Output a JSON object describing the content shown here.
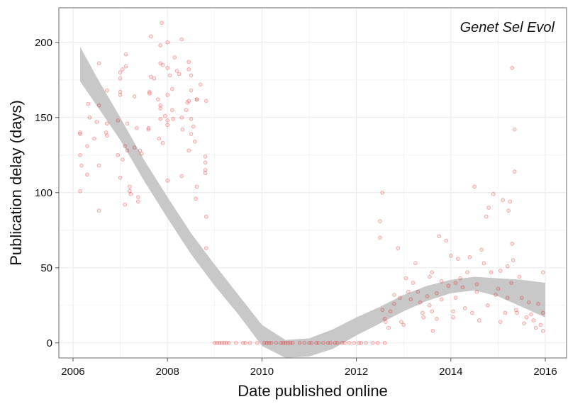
{
  "chart_data": {
    "type": "scatter",
    "title": "",
    "annotation": "Genet Sel Evol",
    "xlabel": "Date published online",
    "ylabel": "Publication delay (days)",
    "xlim": [
      2005.7,
      2016.45
    ],
    "ylim": [
      -10,
      223
    ],
    "x_ticks": [
      2006,
      2008,
      2010,
      2012,
      2014,
      2016
    ],
    "y_ticks": [
      0,
      50,
      100,
      150,
      200
    ],
    "grid": true,
    "colors": {
      "points": "#e31a1c",
      "band": "#c8c8c8",
      "frame": "#8c8c8c",
      "grid": "#ececec"
    },
    "points": [
      [
        2006.15,
        101
      ],
      [
        2006.15,
        125
      ],
      [
        2006.15,
        139
      ],
      [
        2006.15,
        140
      ],
      [
        2006.18,
        118
      ],
      [
        2006.3,
        131
      ],
      [
        2006.32,
        159
      ],
      [
        2006.3,
        112
      ],
      [
        2006.35,
        150
      ],
      [
        2006.45,
        136
      ],
      [
        2006.5,
        147
      ],
      [
        2006.55,
        88
      ],
      [
        2006.55,
        186
      ],
      [
        2006.55,
        158
      ],
      [
        2006.55,
        118
      ],
      [
        2006.7,
        140
      ],
      [
        2006.72,
        168
      ],
      [
        2006.72,
        138
      ],
      [
        2006.72,
        146
      ],
      [
        2006.95,
        148
      ],
      [
        2006.95,
        125
      ],
      [
        2007.0,
        165
      ],
      [
        2007.0,
        180
      ],
      [
        2007.0,
        176
      ],
      [
        2007.0,
        167
      ],
      [
        2007.0,
        110
      ],
      [
        2007.05,
        182
      ],
      [
        2007.05,
        122
      ],
      [
        2007.1,
        92
      ],
      [
        2007.1,
        131
      ],
      [
        2007.12,
        192
      ],
      [
        2007.12,
        184
      ],
      [
        2007.15,
        146
      ],
      [
        2007.15,
        128
      ],
      [
        2007.2,
        104
      ],
      [
        2007.2,
        101
      ],
      [
        2007.22,
        99
      ],
      [
        2007.3,
        164
      ],
      [
        2007.3,
        130
      ],
      [
        2007.35,
        143
      ],
      [
        2007.38,
        94
      ],
      [
        2007.38,
        97
      ],
      [
        2007.42,
        128
      ],
      [
        2007.45,
        126
      ],
      [
        2007.6,
        142
      ],
      [
        2007.6,
        143
      ],
      [
        2007.62,
        166
      ],
      [
        2007.62,
        167
      ],
      [
        2007.65,
        177
      ],
      [
        2007.65,
        204
      ],
      [
        2007.72,
        176
      ],
      [
        2007.8,
        162
      ],
      [
        2007.82,
        136
      ],
      [
        2007.85,
        186
      ],
      [
        2007.85,
        198
      ],
      [
        2007.85,
        156
      ],
      [
        2007.85,
        158
      ],
      [
        2007.85,
        149
      ],
      [
        2007.88,
        213
      ],
      [
        2007.9,
        133
      ],
      [
        2007.9,
        185
      ],
      [
        2007.95,
        151
      ],
      [
        2008.0,
        200
      ],
      [
        2008.0,
        183
      ],
      [
        2008.0,
        165
      ],
      [
        2008.0,
        148
      ],
      [
        2008.0,
        145
      ],
      [
        2008.0,
        108
      ],
      [
        2008.05,
        178
      ],
      [
        2008.1,
        169
      ],
      [
        2008.1,
        155
      ],
      [
        2008.12,
        149
      ],
      [
        2008.15,
        190
      ],
      [
        2008.2,
        181
      ],
      [
        2008.25,
        179
      ],
      [
        2008.3,
        202
      ],
      [
        2008.3,
        150
      ],
      [
        2008.3,
        111
      ],
      [
        2008.32,
        142
      ],
      [
        2008.4,
        155
      ],
      [
        2008.42,
        160
      ],
      [
        2008.45,
        187
      ],
      [
        2008.45,
        182
      ],
      [
        2008.45,
        161
      ],
      [
        2008.45,
        128
      ],
      [
        2008.5,
        178
      ],
      [
        2008.5,
        168
      ],
      [
        2008.5,
        149
      ],
      [
        2008.5,
        139
      ],
      [
        2008.55,
        144
      ],
      [
        2008.58,
        134
      ],
      [
        2008.6,
        96
      ],
      [
        2008.62,
        104
      ],
      [
        2008.62,
        162
      ],
      [
        2008.62,
        162
      ],
      [
        2008.7,
        172
      ],
      [
        2008.8,
        124
      ],
      [
        2008.8,
        115
      ],
      [
        2008.8,
        120
      ],
      [
        2008.8,
        113
      ],
      [
        2008.82,
        161
      ],
      [
        2008.82,
        84
      ],
      [
        2008.82,
        63
      ],
      [
        2009.0,
        0
      ],
      [
        2009.05,
        0
      ],
      [
        2009.1,
        0
      ],
      [
        2009.15,
        0
      ],
      [
        2009.2,
        0
      ],
      [
        2009.25,
        0
      ],
      [
        2009.3,
        0
      ],
      [
        2009.45,
        0
      ],
      [
        2009.6,
        0
      ],
      [
        2009.65,
        0
      ],
      [
        2009.75,
        0
      ],
      [
        2009.9,
        0
      ],
      [
        2010.05,
        0
      ],
      [
        2010.1,
        0
      ],
      [
        2010.15,
        0
      ],
      [
        2010.2,
        0
      ],
      [
        2010.3,
        0
      ],
      [
        2010.4,
        0
      ],
      [
        2010.45,
        0
      ],
      [
        2010.5,
        0
      ],
      [
        2010.55,
        0
      ],
      [
        2010.6,
        0
      ],
      [
        2010.65,
        0
      ],
      [
        2010.8,
        0
      ],
      [
        2010.9,
        0
      ],
      [
        2011.0,
        0
      ],
      [
        2011.05,
        0
      ],
      [
        2011.15,
        0
      ],
      [
        2011.2,
        0
      ],
      [
        2011.3,
        0
      ],
      [
        2011.4,
        0
      ],
      [
        2011.45,
        0
      ],
      [
        2011.55,
        0
      ],
      [
        2011.6,
        0
      ],
      [
        2011.7,
        0
      ],
      [
        2011.75,
        0
      ],
      [
        2011.85,
        0
      ],
      [
        2011.95,
        0
      ],
      [
        2012.05,
        0
      ],
      [
        2012.1,
        0
      ],
      [
        2012.2,
        0
      ],
      [
        2012.35,
        0
      ],
      [
        2012.45,
        0
      ],
      [
        2012.6,
        0
      ],
      [
        2012.5,
        81
      ],
      [
        2012.5,
        70
      ],
      [
        2012.55,
        100
      ],
      [
        2012.55,
        22
      ],
      [
        2012.6,
        16
      ],
      [
        2012.62,
        14
      ],
      [
        2012.68,
        10
      ],
      [
        2012.72,
        21
      ],
      [
        2012.8,
        26
      ],
      [
        2012.8,
        32
      ],
      [
        2012.88,
        63
      ],
      [
        2012.92,
        30
      ],
      [
        2012.95,
        14
      ],
      [
        2013.0,
        12
      ],
      [
        2013.05,
        43
      ],
      [
        2013.1,
        34
      ],
      [
        2013.15,
        29
      ],
      [
        2013.2,
        40
      ],
      [
        2013.25,
        53
      ],
      [
        2013.3,
        34
      ],
      [
        2013.35,
        27
      ],
      [
        2013.4,
        20
      ],
      [
        2013.42,
        17
      ],
      [
        2013.5,
        31
      ],
      [
        2013.55,
        44
      ],
      [
        2013.55,
        25
      ],
      [
        2013.6,
        47
      ],
      [
        2013.6,
        21
      ],
      [
        2013.62,
        8
      ],
      [
        2013.7,
        33
      ],
      [
        2013.7,
        16
      ],
      [
        2013.75,
        71
      ],
      [
        2013.8,
        41
      ],
      [
        2013.8,
        29
      ],
      [
        2013.9,
        68
      ],
      [
        2013.95,
        38
      ],
      [
        2014.0,
        58
      ],
      [
        2014.05,
        21
      ],
      [
        2014.05,
        17
      ],
      [
        2014.1,
        40
      ],
      [
        2014.1,
        30
      ],
      [
        2014.15,
        56
      ],
      [
        2014.2,
        43
      ],
      [
        2014.25,
        37
      ],
      [
        2014.3,
        23
      ],
      [
        2014.35,
        47
      ],
      [
        2014.4,
        57
      ],
      [
        2014.45,
        20
      ],
      [
        2014.5,
        104
      ],
      [
        2014.55,
        39
      ],
      [
        2014.55,
        34
      ],
      [
        2014.6,
        15
      ],
      [
        2014.65,
        62
      ],
      [
        2014.7,
        53
      ],
      [
        2014.75,
        84
      ],
      [
        2014.78,
        25
      ],
      [
        2014.8,
        90
      ],
      [
        2014.85,
        47
      ],
      [
        2014.9,
        99
      ],
      [
        2014.95,
        32
      ],
      [
        2015.0,
        36
      ],
      [
        2015.05,
        48
      ],
      [
        2015.05,
        14
      ],
      [
        2015.1,
        95
      ],
      [
        2015.15,
        20
      ],
      [
        2015.2,
        51
      ],
      [
        2015.2,
        30
      ],
      [
        2015.22,
        88
      ],
      [
        2015.25,
        94
      ],
      [
        2015.28,
        40
      ],
      [
        2015.3,
        183
      ],
      [
        2015.3,
        66
      ],
      [
        2015.32,
        55
      ],
      [
        2015.35,
        142
      ],
      [
        2015.35,
        114
      ],
      [
        2015.38,
        22
      ],
      [
        2015.4,
        20
      ],
      [
        2015.45,
        44
      ],
      [
        2015.5,
        30
      ],
      [
        2015.55,
        13
      ],
      [
        2015.6,
        17
      ],
      [
        2015.65,
        27
      ],
      [
        2015.7,
        19
      ],
      [
        2015.75,
        15
      ],
      [
        2015.8,
        10
      ],
      [
        2015.85,
        26
      ],
      [
        2015.9,
        12
      ],
      [
        2015.95,
        8
      ],
      [
        2015.95,
        47
      ],
      [
        2015.95,
        20
      ]
    ],
    "smooth_band": {
      "x": [
        2006.15,
        2006.5,
        2007.0,
        2007.5,
        2008.0,
        2008.5,
        2009.0,
        2009.5,
        2010.0,
        2010.5,
        2011.0,
        2011.5,
        2012.0,
        2012.5,
        2013.0,
        2013.5,
        2014.0,
        2014.5,
        2015.0,
        2015.5,
        2016.0
      ],
      "upper": [
        197,
        177,
        150,
        122,
        97,
        73,
        52,
        32,
        12,
        2,
        3,
        9,
        17,
        24,
        32,
        38,
        42,
        44,
        43,
        42,
        40
      ],
      "lower": [
        174,
        158,
        135,
        108,
        83,
        59,
        38,
        19,
        -2,
        -10,
        -9,
        -4,
        5,
        13,
        21,
        28,
        33,
        35,
        31,
        24,
        17
      ]
    }
  }
}
